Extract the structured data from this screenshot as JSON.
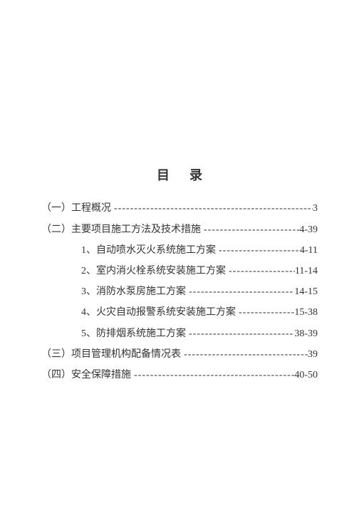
{
  "title": "目录",
  "entries": [
    {
      "level": 0,
      "text": "（一）工程概况",
      "leader": "-",
      "page": "3"
    },
    {
      "level": 0,
      "text": "（二）主要项目施工方法及技术措施",
      "leader": "-",
      "page": "4-39"
    },
    {
      "level": 1,
      "text": "1、自动喷水灭火系统施工方案",
      "leader": "-",
      "page": "4-11"
    },
    {
      "level": 1,
      "text": "2、室内消火栓系统安装施工方案",
      "leader": "-",
      "page": "11-14"
    },
    {
      "level": 1,
      "text": "3、消防水泵房施工方案",
      "leader": "-",
      "page": "14-15"
    },
    {
      "level": 1,
      "text": "4、火灾自动报警系统安装施工方案",
      "leader": "-",
      "page": "15-38"
    },
    {
      "level": 1,
      "text": "5、防排烟系统施工方案",
      "leader": "-",
      "page": "38-39"
    },
    {
      "level": 0,
      "text": "（三）项目管理机构配备情况表",
      "leader": "-",
      "page": "39"
    },
    {
      "level": 0,
      "text": "（四）安全保障措施",
      "leader": "-",
      "page": "40-50"
    }
  ],
  "leader_char": "-",
  "colors": {
    "background": "#ffffff",
    "text": "#333333"
  },
  "fontsize": 14,
  "title_fontsize": 18
}
